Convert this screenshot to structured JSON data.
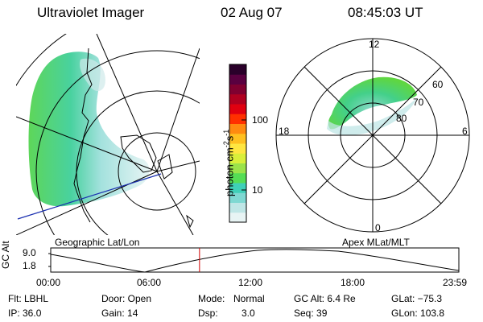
{
  "header": {
    "instrument": "Ultraviolet Imager",
    "date": "02 Aug 07",
    "time": "08:45:03 UT"
  },
  "left_panel": {
    "caption": "Geographic Lat/Lon"
  },
  "right_panel": {
    "caption": "Apex MLat/MLT",
    "mlt_labels": [
      "12",
      "18",
      "6",
      "0"
    ],
    "lat_labels": [
      "60",
      "70",
      "80"
    ]
  },
  "colorbar": {
    "unit_label": "photon cm",
    "unit_exp1": "-2",
    "unit_mid": "s",
    "unit_exp2": "-1",
    "tick_labels": [
      "100",
      "10"
    ],
    "scale": "log",
    "colors": [
      "#e8f4f4",
      "#bfe6e6",
      "#7fd8d2",
      "#3fd0b8",
      "#55dd55",
      "#9be34a",
      "#d9ef3a",
      "#ffe640",
      "#ffc020",
      "#ff8a10",
      "#ff3000",
      "#e00010",
      "#b00020",
      "#800030",
      "#5a0040",
      "#2a002a"
    ]
  },
  "timeline": {
    "ylabel": "GC Alt",
    "y_top": "9.0",
    "y_bottom": "1.8",
    "x_ticks": [
      "00:00",
      "06:00",
      "12:00",
      "18:00",
      "23:59"
    ],
    "current_time_hours": 8.75
  },
  "status": {
    "flt": "Flt: LBHL",
    "ip": "IP: 36.0",
    "door": "Door: Open",
    "gain": "Gain: 14",
    "mode_label": "Mode:",
    "mode_value": "Normal",
    "dsp_label": "Dsp:",
    "dsp_value": "3.0",
    "gc_alt": "GC Alt: 6.4 Re",
    "seq": "Seq: 39",
    "glat": "GLat: −75.3",
    "glon": "GLon: 103.8"
  }
}
